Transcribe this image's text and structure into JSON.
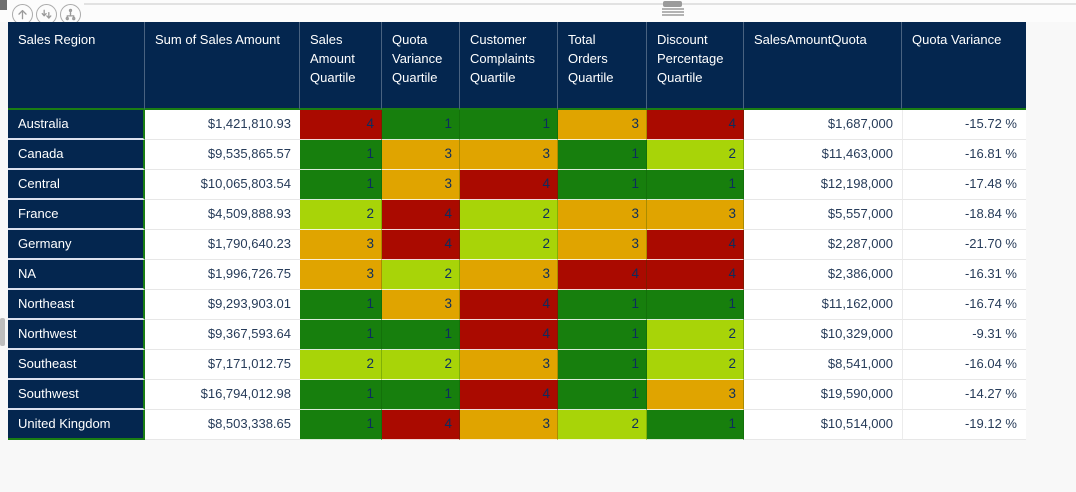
{
  "visual_toolbar": {
    "icons": [
      {
        "name": "drill-up-icon"
      },
      {
        "name": "drill-down-next-level-icon"
      },
      {
        "name": "expand-all-levels-icon"
      }
    ]
  },
  "colors": {
    "header_bg": "#04264F",
    "grid_green": "#1A7E14",
    "quartile_colors": {
      "1": "#177F0D",
      "2": "#A8D408",
      "3": "#E0A400",
      "4": "#AA0A00"
    }
  },
  "table": {
    "columns": [
      {
        "key": "region",
        "label": "Sales Region"
      },
      {
        "key": "sales",
        "label": "Sum of Sales Amount"
      },
      {
        "key": "q_sales",
        "label": "Sales Amount Quartile"
      },
      {
        "key": "q_quota_var",
        "label": "Quota Variance Quartile"
      },
      {
        "key": "q_complaints",
        "label": "Customer Complaints Quartile"
      },
      {
        "key": "q_orders",
        "label": "Total Orders Quartile"
      },
      {
        "key": "q_discount",
        "label": "Discount Percentage Quartile"
      },
      {
        "key": "quota",
        "label": "SalesAmountQuota"
      },
      {
        "key": "variance",
        "label": "Quota Variance"
      }
    ],
    "rows": [
      {
        "region": "Australia",
        "sales": "$1,421,810.93",
        "q_sales": 4,
        "q_quota_var": 1,
        "q_complaints": 1,
        "q_orders": 3,
        "q_discount": 4,
        "quota": "$1,687,000",
        "variance": "-15.72 %"
      },
      {
        "region": "Canada",
        "sales": "$9,535,865.57",
        "q_sales": 1,
        "q_quota_var": 3,
        "q_complaints": 3,
        "q_orders": 1,
        "q_discount": 2,
        "quota": "$11,463,000",
        "variance": "-16.81 %"
      },
      {
        "region": "Central",
        "sales": "$10,065,803.54",
        "q_sales": 1,
        "q_quota_var": 3,
        "q_complaints": 4,
        "q_orders": 1,
        "q_discount": 1,
        "quota": "$12,198,000",
        "variance": "-17.48 %"
      },
      {
        "region": "France",
        "sales": "$4,509,888.93",
        "q_sales": 2,
        "q_quota_var": 4,
        "q_complaints": 2,
        "q_orders": 3,
        "q_discount": 3,
        "quota": "$5,557,000",
        "variance": "-18.84 %"
      },
      {
        "region": "Germany",
        "sales": "$1,790,640.23",
        "q_sales": 3,
        "q_quota_var": 4,
        "q_complaints": 2,
        "q_orders": 3,
        "q_discount": 4,
        "quota": "$2,287,000",
        "variance": "-21.70 %"
      },
      {
        "region": "NA",
        "sales": "$1,996,726.75",
        "q_sales": 3,
        "q_quota_var": 2,
        "q_complaints": 3,
        "q_orders": 4,
        "q_discount": 4,
        "quota": "$2,386,000",
        "variance": "-16.31 %"
      },
      {
        "region": "Northeast",
        "sales": "$9,293,903.01",
        "q_sales": 1,
        "q_quota_var": 3,
        "q_complaints": 4,
        "q_orders": 1,
        "q_discount": 1,
        "quota": "$11,162,000",
        "variance": "-16.74 %"
      },
      {
        "region": "Northwest",
        "sales": "$9,367,593.64",
        "q_sales": 1,
        "q_quota_var": 1,
        "q_complaints": 4,
        "q_orders": 1,
        "q_discount": 2,
        "quota": "$10,329,000",
        "variance": "-9.31 %"
      },
      {
        "region": "Southeast",
        "sales": "$7,171,012.75",
        "q_sales": 2,
        "q_quota_var": 2,
        "q_complaints": 3,
        "q_orders": 1,
        "q_discount": 2,
        "quota": "$8,541,000",
        "variance": "-16.04 %"
      },
      {
        "region": "Southwest",
        "sales": "$16,794,012.98",
        "q_sales": 1,
        "q_quota_var": 1,
        "q_complaints": 4,
        "q_orders": 1,
        "q_discount": 3,
        "quota": "$19,590,000",
        "variance": "-14.27 %"
      },
      {
        "region": "United Kingdom",
        "sales": "$8,503,338.65",
        "q_sales": 1,
        "q_quota_var": 4,
        "q_complaints": 3,
        "q_orders": 2,
        "q_discount": 1,
        "quota": "$10,514,000",
        "variance": "-19.12 %"
      }
    ]
  }
}
